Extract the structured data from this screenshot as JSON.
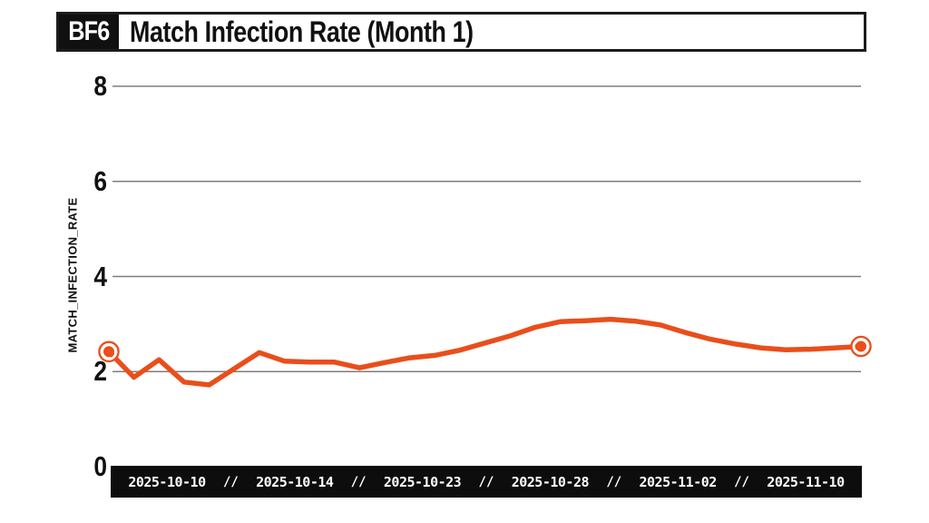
{
  "header": {
    "badge": "BF6",
    "title": "Match Infection Rate (Month 1)"
  },
  "chart_data": {
    "type": "line",
    "title": "Match Infection Rate (Month 1)",
    "xlabel": "",
    "ylabel": "MATCH_INFECTION_RATE",
    "ylim": [
      0,
      8
    ],
    "yticks": [
      0,
      2,
      4,
      6,
      8
    ],
    "grid": "horizontal",
    "legend": "none",
    "x_tick_labels": [
      "2025-10-10",
      "2025-10-14",
      "2025-10-23",
      "2025-10-28",
      "2025-11-02",
      "2025-11-10"
    ],
    "x_tick_separator": "//",
    "series": [
      {
        "name": "match_infection_rate",
        "color": "#e94e1b",
        "endpoint_markers": true,
        "values": [
          2.42,
          1.88,
          2.25,
          1.78,
          1.72,
          2.06,
          2.4,
          2.22,
          2.2,
          2.2,
          2.08,
          2.19,
          2.29,
          2.34,
          2.45,
          2.6,
          2.75,
          2.93,
          3.05,
          3.07,
          3.1,
          3.06,
          2.98,
          2.82,
          2.68,
          2.58,
          2.5,
          2.46,
          2.47,
          2.5,
          2.53
        ]
      }
    ]
  },
  "colors": {
    "line": "#e94e1b",
    "gridline": "#7d7d7d",
    "axis_bar_background": "#0d0d0d",
    "axis_bar_text": "#ffffff",
    "text": "#111111",
    "background": "#ffffff"
  }
}
